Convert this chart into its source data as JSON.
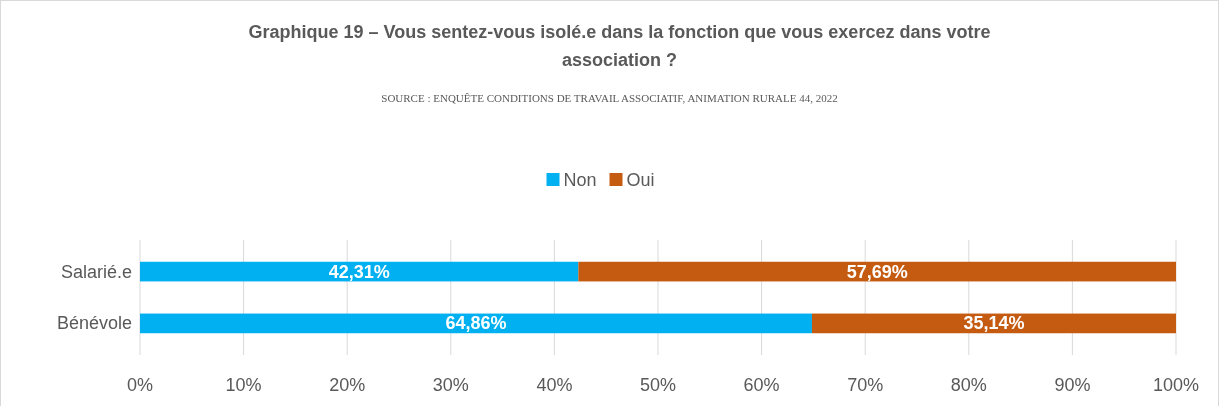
{
  "chart_data": {
    "type": "bar",
    "orientation": "horizontal",
    "stacked": true,
    "title": "Graphique 19 – Vous sentez-vous isolé.e dans la fonction que vous exercez dans votre association ?",
    "subtitle": "SOURCE : ENQUÊTE CONDITIONS DE TRAVAIL ASSOCIATIF, ANIMATION RURALE 44, 2022",
    "categories": [
      "Salarié.e",
      "Bénévole"
    ],
    "series": [
      {
        "name": "Non",
        "color": "#00b0f0",
        "values": [
          42.31,
          64.86
        ],
        "value_labels": [
          "42,31%",
          "64,86%"
        ]
      },
      {
        "name": "Oui",
        "color": "#c55a11",
        "values": [
          57.69,
          35.14
        ],
        "value_labels": [
          "57,69%",
          "35,14%"
        ]
      }
    ],
    "xlim": [
      0,
      100
    ],
    "xticks": [
      {
        "value": 0,
        "label": "0%"
      },
      {
        "value": 10,
        "label": "10%"
      },
      {
        "value": 20,
        "label": "20%"
      },
      {
        "value": 30,
        "label": "30%"
      },
      {
        "value": 40,
        "label": "40%"
      },
      {
        "value": 50,
        "label": "50%"
      },
      {
        "value": 60,
        "label": "60%"
      },
      {
        "value": 70,
        "label": "70%"
      },
      {
        "value": 80,
        "label": "80%"
      },
      {
        "value": 90,
        "label": "90%"
      },
      {
        "value": 100,
        "label": "100%"
      }
    ],
    "grid": "x",
    "legend": "top"
  }
}
